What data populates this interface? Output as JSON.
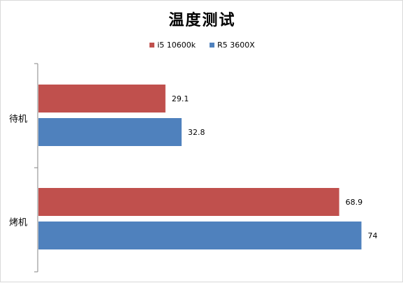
{
  "chart_data": {
    "type": "bar",
    "orientation": "horizontal",
    "title": "温度测试",
    "categories": [
      "待机",
      "烤机"
    ],
    "series": [
      {
        "name": "i5 10600k",
        "color": "#c0504d",
        "values": [
          29.1,
          68.9
        ]
      },
      {
        "name": "R5 3600X",
        "color": "#4f81bd",
        "values": [
          32.8,
          74
        ]
      }
    ],
    "data_labels": [
      [
        "29.1",
        "68.9"
      ],
      [
        "32.8",
        "74"
      ]
    ],
    "legend_position": "top",
    "grid": false,
    "xlim": [
      0,
      80
    ]
  }
}
